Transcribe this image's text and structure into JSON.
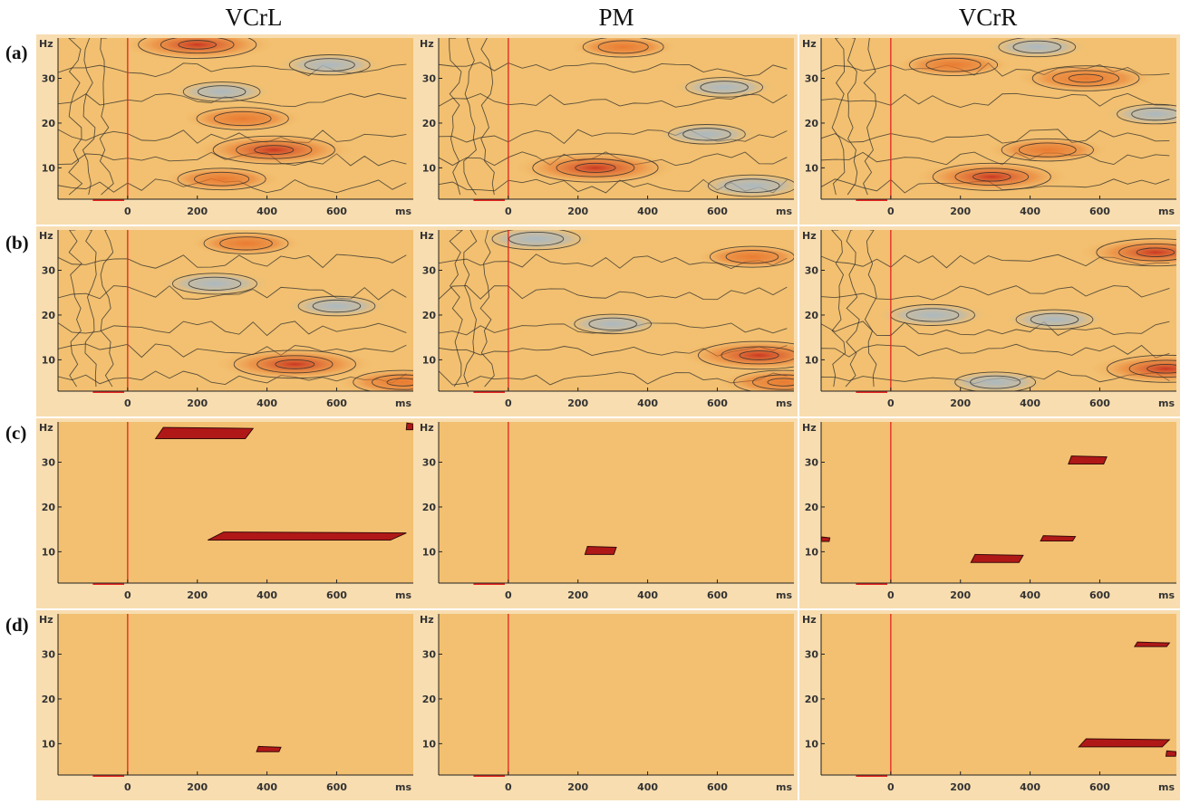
{
  "column_titles": [
    "VCrL",
    "PM",
    "VCrR"
  ],
  "row_labels": [
    "(a)",
    "(b)",
    "(c)",
    "(d)"
  ],
  "colors": {
    "background": "#f2c070",
    "border": "#f8ddb0",
    "stimulus_line": "#e4241e",
    "contour": "#2a2a2a",
    "blob_hot": "#c8321e",
    "blob_warm": "#e8782e",
    "blob_cool": "#a8b8c4",
    "sig_fill": "#b01818"
  },
  "chart_data": {
    "type": "heatmap",
    "layout": "4 rows x 3 columns of time-frequency maps",
    "xlabel": "ms",
    "ylabel": "Hz",
    "x_ticks": [
      0,
      200,
      400,
      600
    ],
    "y_ticks": [
      10,
      20,
      30
    ],
    "xlim": [
      -200,
      820
    ],
    "ylim": [
      3,
      39
    ],
    "stimulus_onset_ms": 0,
    "panels": [
      {
        "row": "(a)",
        "column": "VCrL",
        "kind": "spectral map",
        "blobs": [
          {
            "t": 200,
            "f": 37.5,
            "sign": "pos",
            "strength": 0.85
          },
          {
            "t": 420,
            "f": 14,
            "sign": "pos",
            "strength": 0.9
          },
          {
            "t": 330,
            "f": 21,
            "sign": "pos",
            "strength": 0.5
          },
          {
            "t": 270,
            "f": 7.5,
            "sign": "pos",
            "strength": 0.45
          },
          {
            "t": 580,
            "f": 33,
            "sign": "neg",
            "strength": 0.35
          },
          {
            "t": 270,
            "f": 27,
            "sign": "neg",
            "strength": 0.3
          }
        ]
      },
      {
        "row": "(a)",
        "column": "PM",
        "kind": "spectral map",
        "blobs": [
          {
            "t": 250,
            "f": 10,
            "sign": "pos",
            "strength": 0.95
          },
          {
            "t": 330,
            "f": 37,
            "sign": "pos",
            "strength": 0.35
          },
          {
            "t": 700,
            "f": 6,
            "sign": "neg",
            "strength": 0.45
          },
          {
            "t": 620,
            "f": 28,
            "sign": "neg",
            "strength": 0.3
          },
          {
            "t": 570,
            "f": 17.5,
            "sign": "neg",
            "strength": 0.3
          }
        ]
      },
      {
        "row": "(a)",
        "column": "VCrR",
        "kind": "spectral map",
        "blobs": [
          {
            "t": 290,
            "f": 8,
            "sign": "pos",
            "strength": 0.85
          },
          {
            "t": 560,
            "f": 30,
            "sign": "pos",
            "strength": 0.7
          },
          {
            "t": 180,
            "f": 33,
            "sign": "pos",
            "strength": 0.45
          },
          {
            "t": 450,
            "f": 14,
            "sign": "pos",
            "strength": 0.5
          },
          {
            "t": 760,
            "f": 22,
            "sign": "neg",
            "strength": 0.3
          },
          {
            "t": 420,
            "f": 37,
            "sign": "neg",
            "strength": 0.3
          }
        ]
      },
      {
        "row": "(b)",
        "column": "VCrL",
        "kind": "spectral map",
        "blobs": [
          {
            "t": 480,
            "f": 9,
            "sign": "pos",
            "strength": 0.9
          },
          {
            "t": 340,
            "f": 36,
            "sign": "pos",
            "strength": 0.4
          },
          {
            "t": 250,
            "f": 27,
            "sign": "neg",
            "strength": 0.4
          },
          {
            "t": 600,
            "f": 22,
            "sign": "neg",
            "strength": 0.3
          },
          {
            "t": 790,
            "f": 5,
            "sign": "pos",
            "strength": 0.6
          }
        ]
      },
      {
        "row": "(b)",
        "column": "PM",
        "kind": "spectral map",
        "blobs": [
          {
            "t": 720,
            "f": 11,
            "sign": "pos",
            "strength": 0.9
          },
          {
            "t": 790,
            "f": 5,
            "sign": "pos",
            "strength": 0.6
          },
          {
            "t": 80,
            "f": 37,
            "sign": "neg",
            "strength": 0.45
          },
          {
            "t": 700,
            "f": 33,
            "sign": "pos",
            "strength": 0.4
          },
          {
            "t": 300,
            "f": 18,
            "sign": "neg",
            "strength": 0.3
          }
        ]
      },
      {
        "row": "(b)",
        "column": "VCrR",
        "kind": "spectral map",
        "blobs": [
          {
            "t": 760,
            "f": 34,
            "sign": "pos",
            "strength": 0.85
          },
          {
            "t": 790,
            "f": 8,
            "sign": "pos",
            "strength": 0.85
          },
          {
            "t": 120,
            "f": 20,
            "sign": "neg",
            "strength": 0.4
          },
          {
            "t": 300,
            "f": 5,
            "sign": "neg",
            "strength": 0.35
          },
          {
            "t": 470,
            "f": 19,
            "sign": "neg",
            "strength": 0.3
          }
        ]
      },
      {
        "row": "(c)",
        "column": "VCrL",
        "kind": "significance map",
        "clusters": [
          {
            "t0": 80,
            "t1": 360,
            "f": 36.5,
            "h": 2.5
          },
          {
            "t0": 230,
            "t1": 800,
            "f": 13.5,
            "h": 1.8
          },
          {
            "t0": 800,
            "t1": 820,
            "f": 38,
            "h": 1.5
          }
        ]
      },
      {
        "row": "(c)",
        "column": "PM",
        "kind": "significance map",
        "clusters": [
          {
            "t0": 220,
            "t1": 310,
            "f": 10.3,
            "h": 1.8
          }
        ]
      },
      {
        "row": "(c)",
        "column": "VCrR",
        "kind": "significance map",
        "clusters": [
          {
            "t0": 510,
            "t1": 620,
            "f": 30.5,
            "h": 1.8
          },
          {
            "t0": 230,
            "t1": 380,
            "f": 8.5,
            "h": 1.8
          },
          {
            "t0": 430,
            "t1": 530,
            "f": 13,
            "h": 1.2
          },
          {
            "t0": -200,
            "t1": -175,
            "f": 12.8,
            "h": 1.0
          }
        ]
      },
      {
        "row": "(d)",
        "column": "VCrL",
        "kind": "significance map",
        "clusters": [
          {
            "t0": 370,
            "t1": 440,
            "f": 8.8,
            "h": 1.2
          }
        ]
      },
      {
        "row": "(d)",
        "column": "PM",
        "kind": "significance map",
        "clusters": []
      },
      {
        "row": "(d)",
        "column": "VCrR",
        "kind": "significance map",
        "clusters": [
          {
            "t0": 700,
            "t1": 800,
            "f": 32.2,
            "h": 1.0
          },
          {
            "t0": 540,
            "t1": 800,
            "f": 10.2,
            "h": 1.8
          },
          {
            "t0": 790,
            "t1": 820,
            "f": 7.8,
            "h": 1.2
          }
        ]
      }
    ]
  }
}
